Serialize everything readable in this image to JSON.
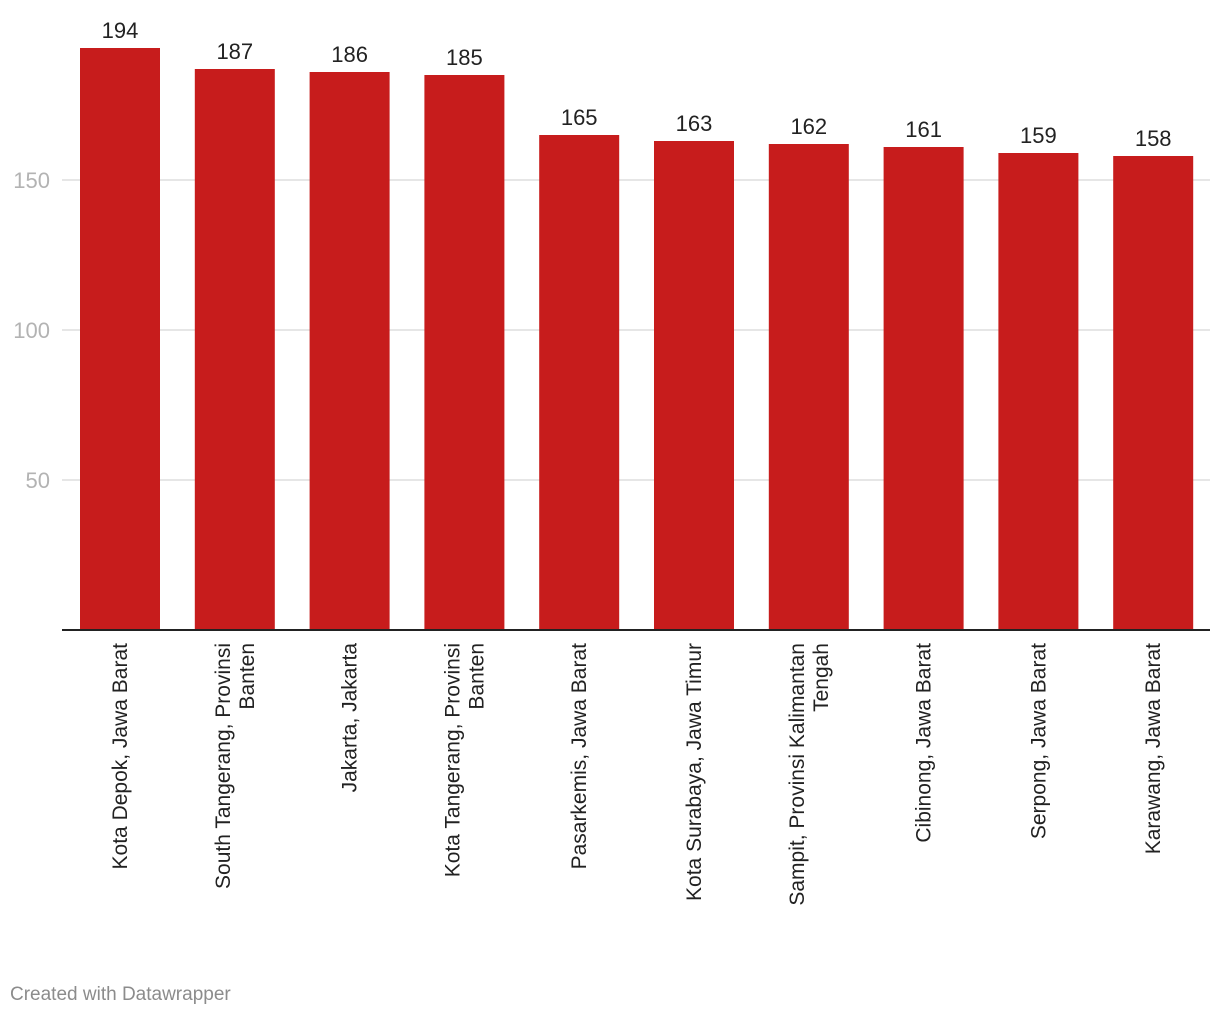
{
  "chart_data": {
    "type": "bar",
    "title": "",
    "xlabel": "",
    "ylabel": "",
    "ylim": [
      0,
      200
    ],
    "yticks": [
      50,
      100,
      150
    ],
    "grid": true,
    "bar_color": "#c71c1c",
    "categories": [
      [
        "Kota Depok, Jawa Barat"
      ],
      [
        "South Tangerang, Provinsi",
        "Banten"
      ],
      [
        "Jakarta, Jakarta"
      ],
      [
        "Kota Tangerang, Provinsi",
        "Banten"
      ],
      [
        "Pasarkemis, Jawa Barat"
      ],
      [
        "Kota Surabaya, Jawa Timur"
      ],
      [
        "Sampit, Provinsi Kalimantan",
        "Tengah"
      ],
      [
        "Cibinong, Jawa Barat"
      ],
      [
        "Serpong, Jawa Barat"
      ],
      [
        "Karawang, Jawa Barat"
      ]
    ],
    "values": [
      194,
      187,
      186,
      185,
      165,
      163,
      162,
      161,
      159,
      158
    ]
  },
  "footer": {
    "credit": "Created with Datawrapper"
  }
}
